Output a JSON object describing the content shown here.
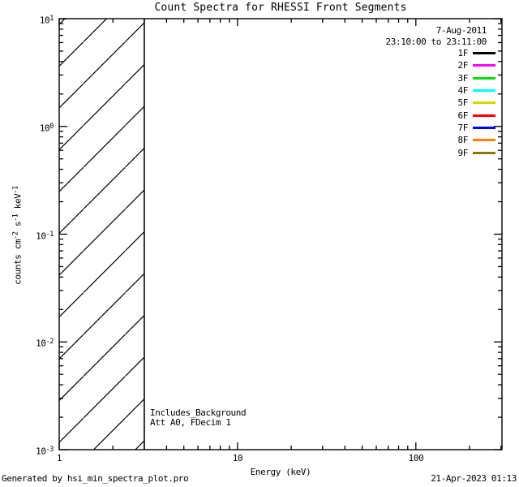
{
  "title": "Count Spectra for RHESSI Front Segments",
  "header": {
    "date": "7-Aug-2011",
    "time_range": "23:10:00 to 23:11:00"
  },
  "annotations": {
    "background_note": "Includes_Background",
    "attenuator_note": "Att A0, FDecim 1"
  },
  "footer": {
    "generated_by": "Generated by hsi_min_spectra_plot.pro",
    "timestamp": "21-Apr-2023 01:13"
  },
  "chart_data": {
    "type": "line",
    "title": "Count Spectra for RHESSI Front Segments",
    "xlabel": "Energy (keV)",
    "ylabel": "counts cm^-2 s^-1 keV^-1",
    "ylabel_parts": [
      {
        "t": "counts cm"
      },
      {
        "sup": "-2"
      },
      {
        "t": " s"
      },
      {
        "sup": "-1"
      },
      {
        "t": " keV"
      },
      {
        "sup": "-1"
      }
    ],
    "x_scale": "log",
    "y_scale": "log",
    "xlim": [
      1,
      304
    ],
    "ylim": [
      0.001,
      10
    ],
    "grid": false,
    "x_major_ticks": [
      1,
      10,
      100
    ],
    "x_tick_labels": [
      "1",
      "10",
      "100"
    ],
    "y_major_ticks": [
      10,
      1,
      0.1,
      0.01,
      0.001
    ],
    "y_tick_labels": [
      {
        "base": "10",
        "exp": "1"
      },
      {
        "base": "10",
        "exp": "0"
      },
      {
        "base": "10",
        "exp": "-1"
      },
      {
        "base": "10",
        "exp": "-2"
      },
      {
        "base": "10",
        "exp": "-3"
      }
    ],
    "hatched_region": {
      "x_start": 1,
      "x_end": 3,
      "style": "diagonal-hatch"
    },
    "series": [],
    "legend": {
      "position": "top-right",
      "entries": [
        {
          "label": "1F",
          "color": "#000000"
        },
        {
          "label": "2F",
          "color": "#ff00ff"
        },
        {
          "label": "3F",
          "color": "#00e100"
        },
        {
          "label": "4F",
          "color": "#00ffff"
        },
        {
          "label": "5F",
          "color": "#d6d600"
        },
        {
          "label": "6F",
          "color": "#ff0000"
        },
        {
          "label": "7F",
          "color": "#0000ff"
        },
        {
          "label": "8F",
          "color": "#ff8000"
        },
        {
          "label": "9F",
          "color": "#8f7600"
        }
      ]
    }
  }
}
